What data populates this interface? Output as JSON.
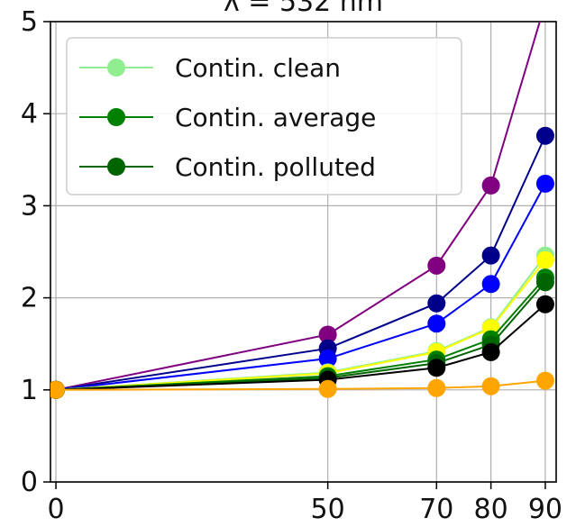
{
  "chart_data": {
    "type": "line",
    "title": "λ = 532 nm",
    "xlabel": "",
    "ylabel": "",
    "xlim": [
      -1,
      92
    ],
    "ylim": [
      0,
      5
    ],
    "x": [
      0,
      50,
      70,
      80,
      90
    ],
    "x_ticks": [
      "0",
      "50",
      "70",
      "80",
      "90"
    ],
    "y_ticks": [
      "0",
      "1",
      "2",
      "3",
      "4",
      "5"
    ],
    "grid": true,
    "legend": {
      "placement": "upper-left",
      "entries": [
        "Contin. clean",
        "Contin. average",
        "Contin. polluted"
      ]
    },
    "series": [
      {
        "color": "#800080",
        "values": [
          1.0,
          1.6,
          2.35,
          3.22,
          5.2
        ]
      },
      {
        "color": "#00008b",
        "values": [
          1.0,
          1.45,
          1.94,
          2.46,
          3.76
        ]
      },
      {
        "color": "#0000ff",
        "values": [
          1.0,
          1.34,
          1.72,
          2.15,
          3.24
        ]
      },
      {
        "color": "#90ee90",
        "name": "Contin. clean",
        "values": [
          1.0,
          1.19,
          1.42,
          1.68,
          2.46
        ]
      },
      {
        "color": "#ffff00",
        "values": [
          1.0,
          1.18,
          1.41,
          1.67,
          2.41
        ]
      },
      {
        "color": "#008000",
        "name": "Contin. average",
        "values": [
          1.0,
          1.15,
          1.33,
          1.55,
          2.22
        ]
      },
      {
        "color": "#006400",
        "name": "Contin. polluted",
        "values": [
          1.0,
          1.13,
          1.29,
          1.49,
          2.17
        ]
      },
      {
        "color": "#000000",
        "values": [
          1.0,
          1.11,
          1.24,
          1.41,
          1.93
        ]
      },
      {
        "color": "#ffa500",
        "values": [
          1.0,
          1.01,
          1.02,
          1.04,
          1.1
        ]
      }
    ]
  }
}
